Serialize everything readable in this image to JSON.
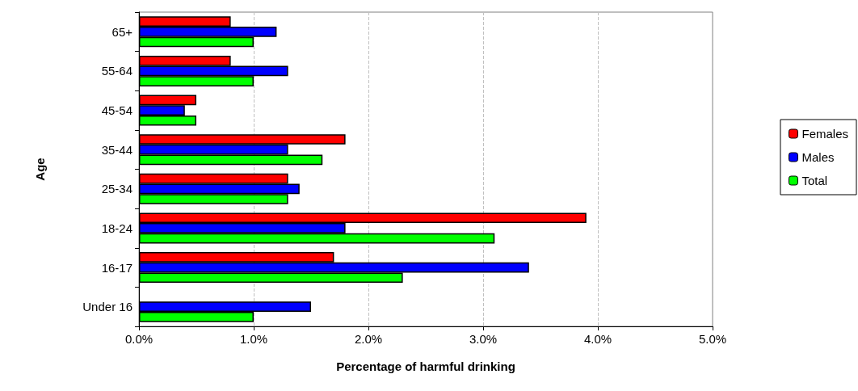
{
  "chart_data": {
    "type": "bar",
    "orientation": "horizontal",
    "xlabel": "Percentage of harmful drinking",
    "ylabel": "Age",
    "categories": [
      "65+",
      "55-64",
      "45-54",
      "35-44",
      "25-34",
      "18-24",
      "16-17",
      "Under 16"
    ],
    "series": [
      {
        "name": "Females",
        "color": "#ff0000",
        "values": [
          0.8,
          0.8,
          0.5,
          1.8,
          1.3,
          3.9,
          1.7,
          null
        ]
      },
      {
        "name": "Males",
        "color": "#0000ff",
        "values": [
          1.2,
          1.3,
          0.4,
          1.3,
          1.4,
          1.8,
          3.4,
          1.5
        ]
      },
      {
        "name": "Total",
        "color": "#00ff00",
        "values": [
          1.0,
          1.0,
          0.5,
          1.6,
          1.3,
          3.1,
          2.3,
          1.0
        ]
      }
    ],
    "xlim": [
      0,
      5
    ],
    "xticks": [
      {
        "value": 0,
        "label": "0.0%"
      },
      {
        "value": 1,
        "label": "1.0%"
      },
      {
        "value": 2,
        "label": "2.0%"
      },
      {
        "value": 3,
        "label": "3.0%"
      },
      {
        "value": 4,
        "label": "4.0%"
      },
      {
        "value": 5,
        "label": "5.0%"
      }
    ],
    "grid": "x",
    "legend": "right"
  }
}
